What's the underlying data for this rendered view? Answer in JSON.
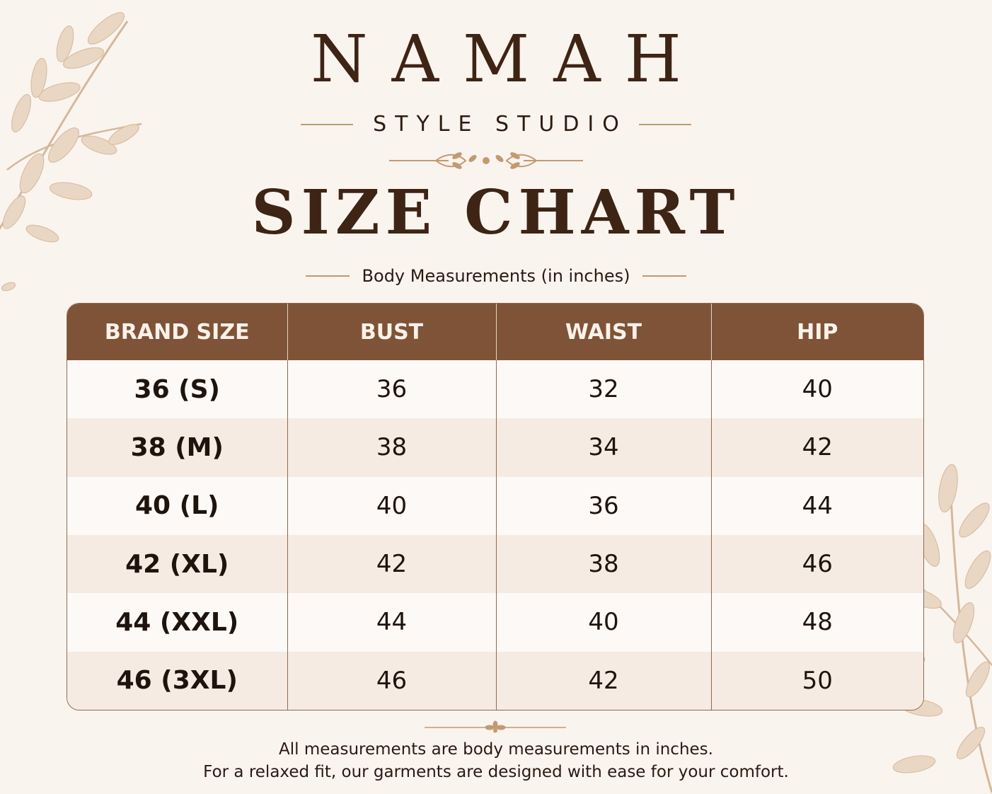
{
  "brand": {
    "name": "NAMAH",
    "tagline": "STYLE STUDIO"
  },
  "heading": {
    "title": "SIZE CHART",
    "subtitle": "Body Measurements (in inches)"
  },
  "table": {
    "headers": [
      "BRAND SIZE",
      "BUST",
      "WAIST",
      "HIP"
    ],
    "rows": [
      [
        "36 (S)",
        "36",
        "32",
        "40"
      ],
      [
        "38 (M)",
        "38",
        "34",
        "42"
      ],
      [
        "40 (L)",
        "40",
        "36",
        "44"
      ],
      [
        "42 (XL)",
        "42",
        "38",
        "46"
      ],
      [
        "44 (XXL)",
        "44",
        "40",
        "48"
      ],
      [
        "46 (3XL)",
        "46",
        "42",
        "50"
      ]
    ]
  },
  "notes": {
    "line1": "All measurements are body measurements in inches.",
    "line2": "For a relaxed fit, our garments are designed with ease for your comfort."
  },
  "colors": {
    "background": "#faf4ef",
    "header": "#7f5337",
    "accent": "#c39a70",
    "brand_text": "#3e2414"
  },
  "icons": {
    "top_left": "leaf-branch-icon",
    "bottom_right": "leaf-branch-icon",
    "divider": "flourish-ornament-icon"
  }
}
